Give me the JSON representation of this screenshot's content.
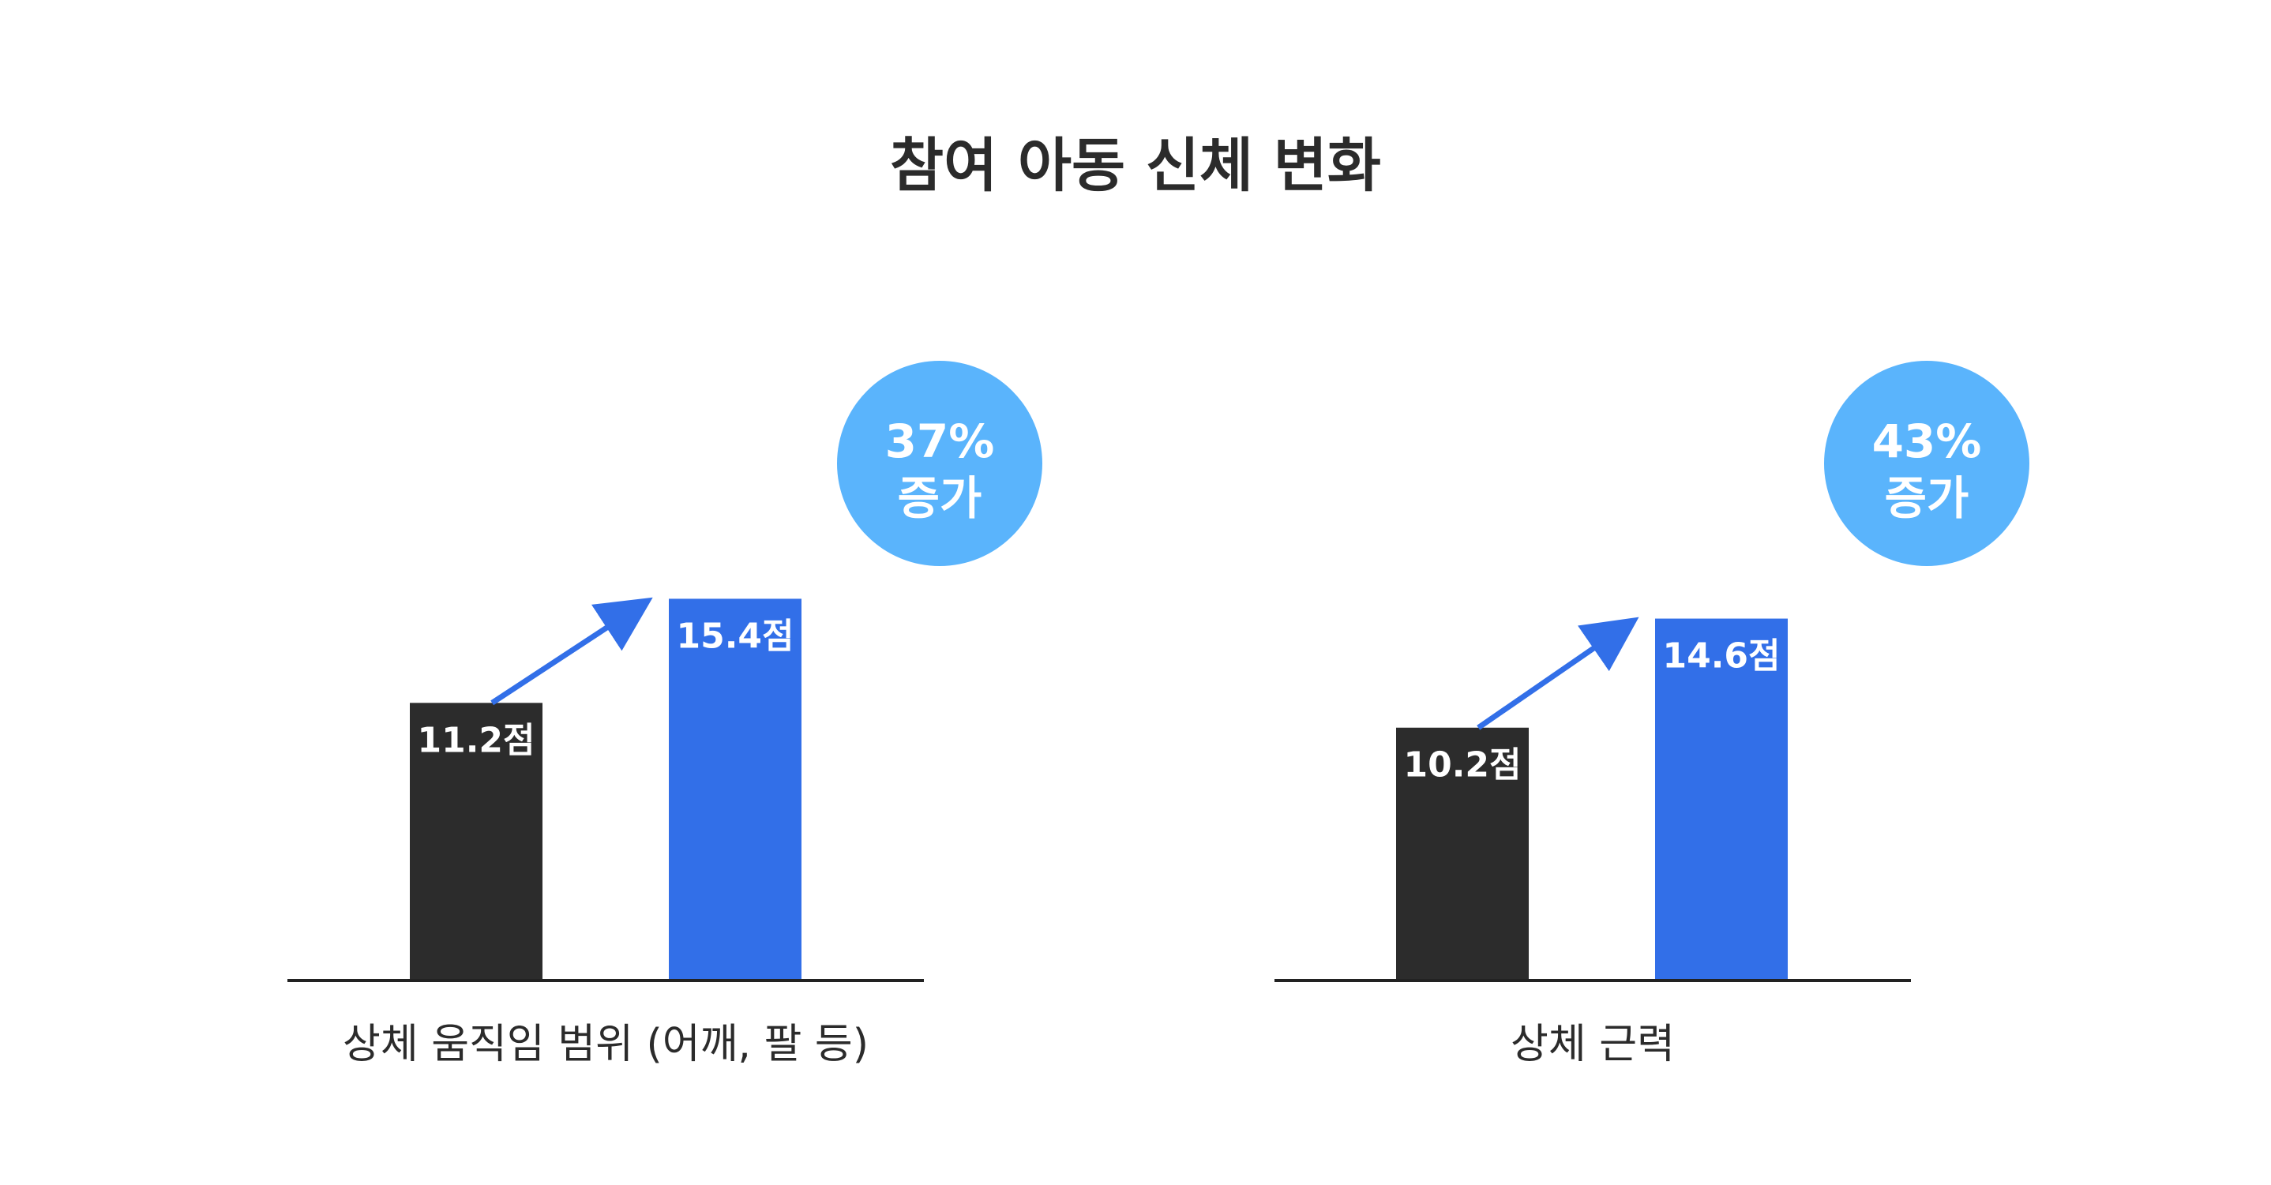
{
  "chart_title": "참여 아동 신체 변화",
  "colors": {
    "before": "#2c2c2c",
    "after": "#326fe8",
    "badge": "#5ab4fc",
    "axis": "#222222",
    "arrow": "#326fe8"
  },
  "chart_data": {
    "type": "bar",
    "title": "참여 아동 신체 변화",
    "groups": [
      {
        "category": "상체 움직임 범위 (어깨, 팔 등)",
        "values": [
          11.2,
          15.4
        ],
        "labels": [
          "11.2점",
          "15.4점"
        ],
        "change_line1": "37%",
        "change_line2": "증가"
      },
      {
        "category": "상체 근력",
        "values": [
          10.2,
          14.6
        ],
        "labels": [
          "10.2점",
          "14.6점"
        ],
        "change_line1": "43%",
        "change_line2": "증가"
      }
    ]
  }
}
